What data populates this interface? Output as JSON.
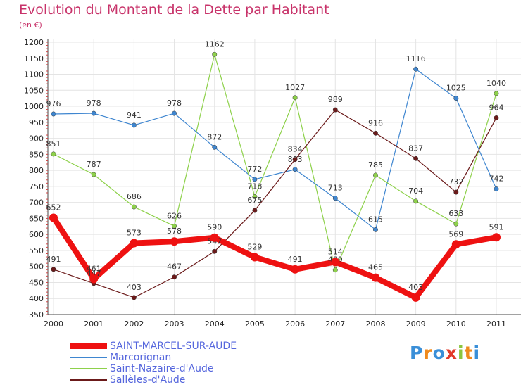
{
  "title": "Evolution du Montant de la Dette par Habitant",
  "subtitle": "(en €)",
  "logo": {
    "letters": [
      "P",
      "r",
      "o",
      "x",
      "i",
      "t",
      "i"
    ],
    "colors": [
      "#3a8fd8",
      "#f08a1c",
      "#3a8fd8",
      "#e23a2a",
      "#8cc63e",
      "#f08a1c",
      "#3a8fd8"
    ]
  },
  "chart_data": {
    "type": "line",
    "title": "Evolution du Montant de la Dette par Habitant",
    "subtitle": "(en €)",
    "xlabel": "",
    "ylabel": "",
    "x": [
      "2000",
      "2001",
      "2002",
      "2003",
      "2004",
      "2005",
      "2006",
      "2007",
      "2008",
      "2009",
      "2010",
      "2011"
    ],
    "ylim": [
      350,
      1200
    ],
    "yticks": [
      350,
      400,
      450,
      500,
      550,
      600,
      650,
      700,
      750,
      800,
      850,
      900,
      950,
      1000,
      1050,
      1100,
      1150,
      1200
    ],
    "grid": true,
    "legend": "bottom-left",
    "series": [
      {
        "name": "Marcorignan",
        "color": "#3f86d0",
        "values": [
          976,
          978,
          941,
          978,
          872,
          772,
          803,
          713,
          615,
          1116,
          1025,
          742
        ]
      },
      {
        "name": "Saint-Nazaire-d'Aude",
        "color": "#8ed14b",
        "values": [
          851,
          787,
          686,
          626,
          1162,
          718,
          1027,
          489,
          785,
          704,
          633,
          1040
        ]
      },
      {
        "name": "Sallèles-d'Aude",
        "color": "#6b1a1a",
        "values": [
          491,
          447,
          403,
          467,
          547,
          675,
          834,
          989,
          916,
          837,
          732,
          964
        ]
      },
      {
        "name": "SAINT-MARCEL-SUR-AUDE",
        "color": "#ee1111",
        "values": [
          652,
          461,
          573,
          578,
          590,
          529,
          491,
          514,
          465,
          403,
          569,
          591
        ]
      }
    ]
  }
}
